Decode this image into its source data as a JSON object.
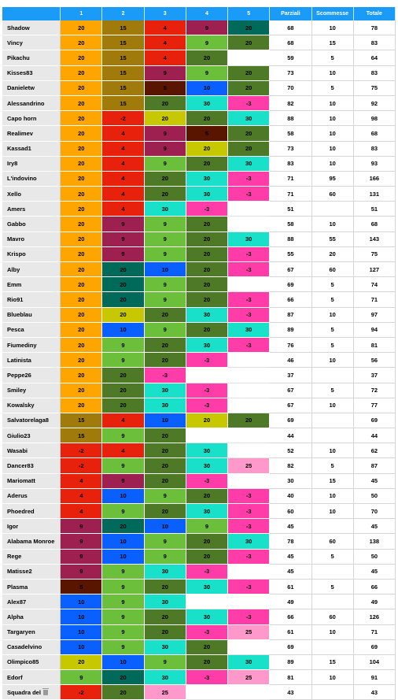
{
  "header": {
    "blank": "",
    "cols": [
      "1",
      "2",
      "3",
      "4",
      "5",
      "Parziali",
      "Scommesse",
      "Totale"
    ]
  },
  "colors": {
    "orange": "#ffa500",
    "olive": "#a07a0a",
    "red": "#e8210c",
    "maroon": "#9e2050",
    "darkteal": "#006a5a",
    "green": "#4e7a28",
    "lightgreen": "#6bbf3b",
    "blue": "#0a60ff",
    "cyan": "#19e0c8",
    "magenta": "#ff3ca8",
    "pink": "#ff99cc",
    "yellow": "#c8c800",
    "brown": "#5a1500",
    "empty": "#ffffff"
  },
  "rows": [
    {
      "name": "Shadow",
      "scores": [
        [
          "20",
          "orange"
        ],
        [
          "15",
          "olive"
        ],
        [
          "4",
          "red"
        ],
        [
          "9",
          "maroon"
        ],
        [
          "20",
          "darkteal"
        ]
      ],
      "parziali": "68",
      "scommesse": "10",
      "totale": "78"
    },
    {
      "name": "Vincy",
      "scores": [
        [
          "20",
          "orange"
        ],
        [
          "15",
          "olive"
        ],
        [
          "4",
          "red"
        ],
        [
          "9",
          "lightgreen"
        ],
        [
          "20",
          "green"
        ]
      ],
      "parziali": "68",
      "scommesse": "15",
      "totale": "83"
    },
    {
      "name": "Pikachu",
      "scores": [
        [
          "20",
          "orange"
        ],
        [
          "15",
          "olive"
        ],
        [
          "4",
          "red"
        ],
        [
          "20",
          "green"
        ],
        [
          "",
          "empty"
        ]
      ],
      "parziali": "59",
      "scommesse": "5",
      "totale": "64"
    },
    {
      "name": "Kisses83",
      "scores": [
        [
          "20",
          "orange"
        ],
        [
          "15",
          "olive"
        ],
        [
          "9",
          "maroon"
        ],
        [
          "9",
          "lightgreen"
        ],
        [
          "20",
          "green"
        ]
      ],
      "parziali": "73",
      "scommesse": "10",
      "totale": "83"
    },
    {
      "name": "Danieletw",
      "scores": [
        [
          "20",
          "orange"
        ],
        [
          "15",
          "olive"
        ],
        [
          "5",
          "brown"
        ],
        [
          "10",
          "blue"
        ],
        [
          "20",
          "green"
        ]
      ],
      "parziali": "70",
      "scommesse": "5",
      "totale": "75"
    },
    {
      "name": "Alessandrino",
      "scores": [
        [
          "20",
          "orange"
        ],
        [
          "15",
          "olive"
        ],
        [
          "20",
          "green"
        ],
        [
          "30",
          "cyan"
        ],
        [
          "-3",
          "magenta"
        ]
      ],
      "parziali": "82",
      "scommesse": "10",
      "totale": "92"
    },
    {
      "name": "Capo horn",
      "scores": [
        [
          "20",
          "orange"
        ],
        [
          "-2",
          "red"
        ],
        [
          "20",
          "yellow"
        ],
        [
          "20",
          "green"
        ],
        [
          "30",
          "cyan"
        ]
      ],
      "parziali": "88",
      "scommesse": "10",
      "totale": "98"
    },
    {
      "name": "Realimev",
      "scores": [
        [
          "20",
          "orange"
        ],
        [
          "4",
          "red"
        ],
        [
          "9",
          "maroon"
        ],
        [
          "5",
          "brown"
        ],
        [
          "20",
          "green"
        ]
      ],
      "parziali": "58",
      "scommesse": "10",
      "totale": "68"
    },
    {
      "name": "Kassad1",
      "scores": [
        [
          "20",
          "orange"
        ],
        [
          "4",
          "red"
        ],
        [
          "9",
          "maroon"
        ],
        [
          "20",
          "yellow"
        ],
        [
          "20",
          "green"
        ]
      ],
      "parziali": "73",
      "scommesse": "10",
      "totale": "83"
    },
    {
      "name": "Iry8",
      "scores": [
        [
          "20",
          "orange"
        ],
        [
          "4",
          "red"
        ],
        [
          "9",
          "lightgreen"
        ],
        [
          "20",
          "green"
        ],
        [
          "30",
          "cyan"
        ]
      ],
      "parziali": "83",
      "scommesse": "10",
      "totale": "93"
    },
    {
      "name": "L'indovino",
      "scores": [
        [
          "20",
          "orange"
        ],
        [
          "4",
          "red"
        ],
        [
          "20",
          "green"
        ],
        [
          "30",
          "cyan"
        ],
        [
          "-3",
          "magenta"
        ]
      ],
      "parziali": "71",
      "scommesse": "95",
      "totale": "166"
    },
    {
      "name": "Xello",
      "scores": [
        [
          "20",
          "orange"
        ],
        [
          "4",
          "red"
        ],
        [
          "20",
          "green"
        ],
        [
          "30",
          "cyan"
        ],
        [
          "-3",
          "magenta"
        ]
      ],
      "parziali": "71",
      "scommesse": "60",
      "totale": "131"
    },
    {
      "name": "Amers",
      "scores": [
        [
          "20",
          "orange"
        ],
        [
          "4",
          "red"
        ],
        [
          "30",
          "cyan"
        ],
        [
          "-3",
          "magenta"
        ],
        [
          "",
          "empty"
        ]
      ],
      "parziali": "51",
      "scommesse": "",
      "totale": "51"
    },
    {
      "name": "Gabbo",
      "scores": [
        [
          "20",
          "orange"
        ],
        [
          "9",
          "maroon"
        ],
        [
          "9",
          "lightgreen"
        ],
        [
          "20",
          "green"
        ],
        [
          "",
          "empty"
        ]
      ],
      "parziali": "58",
      "scommesse": "10",
      "totale": "68"
    },
    {
      "name": "Mavro",
      "scores": [
        [
          "20",
          "orange"
        ],
        [
          "9",
          "maroon"
        ],
        [
          "9",
          "lightgreen"
        ],
        [
          "20",
          "green"
        ],
        [
          "30",
          "cyan"
        ]
      ],
      "parziali": "88",
      "scommesse": "55",
      "totale": "143"
    },
    {
      "name": "Krispo",
      "scores": [
        [
          "20",
          "orange"
        ],
        [
          "9",
          "maroon"
        ],
        [
          "9",
          "lightgreen"
        ],
        [
          "20",
          "green"
        ],
        [
          "-3",
          "magenta"
        ]
      ],
      "parziali": "55",
      "scommesse": "20",
      "totale": "75"
    },
    {
      "name": "Alby",
      "scores": [
        [
          "20",
          "orange"
        ],
        [
          "20",
          "darkteal"
        ],
        [
          "10",
          "blue"
        ],
        [
          "20",
          "green"
        ],
        [
          "-3",
          "magenta"
        ]
      ],
      "parziali": "67",
      "scommesse": "60",
      "totale": "127"
    },
    {
      "name": "Emm",
      "scores": [
        [
          "20",
          "orange"
        ],
        [
          "20",
          "darkteal"
        ],
        [
          "9",
          "lightgreen"
        ],
        [
          "20",
          "green"
        ],
        [
          "",
          "empty"
        ]
      ],
      "parziali": "69",
      "scommesse": "5",
      "totale": "74"
    },
    {
      "name": "Rio91",
      "scores": [
        [
          "20",
          "orange"
        ],
        [
          "20",
          "darkteal"
        ],
        [
          "9",
          "lightgreen"
        ],
        [
          "20",
          "green"
        ],
        [
          "-3",
          "magenta"
        ]
      ],
      "parziali": "66",
      "scommesse": "5",
      "totale": "71"
    },
    {
      "name": "Blueblau",
      "scores": [
        [
          "20",
          "orange"
        ],
        [
          "20",
          "yellow"
        ],
        [
          "20",
          "green"
        ],
        [
          "30",
          "cyan"
        ],
        [
          "-3",
          "magenta"
        ]
      ],
      "parziali": "87",
      "scommesse": "10",
      "totale": "97"
    },
    {
      "name": "Pesca",
      "scores": [
        [
          "20",
          "orange"
        ],
        [
          "10",
          "blue"
        ],
        [
          "9",
          "lightgreen"
        ],
        [
          "20",
          "green"
        ],
        [
          "30",
          "cyan"
        ]
      ],
      "parziali": "89",
      "scommesse": "5",
      "totale": "94"
    },
    {
      "name": "Fiumediny",
      "scores": [
        [
          "20",
          "orange"
        ],
        [
          "9",
          "lightgreen"
        ],
        [
          "20",
          "green"
        ],
        [
          "30",
          "cyan"
        ],
        [
          "-3",
          "magenta"
        ]
      ],
      "parziali": "76",
      "scommesse": "5",
      "totale": "81"
    },
    {
      "name": "Latinista",
      "scores": [
        [
          "20",
          "orange"
        ],
        [
          "9",
          "lightgreen"
        ],
        [
          "20",
          "green"
        ],
        [
          "-3",
          "magenta"
        ],
        [
          "",
          "empty"
        ]
      ],
      "parziali": "46",
      "scommesse": "10",
      "totale": "56"
    },
    {
      "name": "Peppe26",
      "scores": [
        [
          "20",
          "orange"
        ],
        [
          "20",
          "green"
        ],
        [
          "-3",
          "magenta"
        ],
        [
          "",
          "empty"
        ],
        [
          "",
          "empty"
        ]
      ],
      "parziali": "37",
      "scommesse": "",
      "totale": "37"
    },
    {
      "name": "Smiley",
      "scores": [
        [
          "20",
          "orange"
        ],
        [
          "20",
          "green"
        ],
        [
          "30",
          "cyan"
        ],
        [
          "-3",
          "magenta"
        ],
        [
          "",
          "empty"
        ]
      ],
      "parziali": "67",
      "scommesse": "5",
      "totale": "72"
    },
    {
      "name": "Kowalsky",
      "scores": [
        [
          "20",
          "orange"
        ],
        [
          "20",
          "green"
        ],
        [
          "30",
          "cyan"
        ],
        [
          "-3",
          "magenta"
        ],
        [
          "",
          "empty"
        ]
      ],
      "parziali": "67",
      "scommesse": "10",
      "totale": "77"
    },
    {
      "name": "Salvatorelaga8",
      "scores": [
        [
          "15",
          "olive"
        ],
        [
          "4",
          "red"
        ],
        [
          "10",
          "blue"
        ],
        [
          "20",
          "yellow"
        ],
        [
          "20",
          "green"
        ]
      ],
      "parziali": "69",
      "scommesse": "",
      "totale": "69"
    },
    {
      "name": "Giulio23",
      "scores": [
        [
          "15",
          "olive"
        ],
        [
          "9",
          "lightgreen"
        ],
        [
          "20",
          "green"
        ],
        [
          "",
          "empty"
        ],
        [
          "",
          "empty"
        ]
      ],
      "parziali": "44",
      "scommesse": "",
      "totale": "44"
    },
    {
      "name": "Wasabi",
      "scores": [
        [
          "-2",
          "red"
        ],
        [
          "4",
          "red"
        ],
        [
          "20",
          "green"
        ],
        [
          "30",
          "cyan"
        ],
        [
          "",
          "empty"
        ]
      ],
      "parziali": "52",
      "scommesse": "10",
      "totale": "62"
    },
    {
      "name": "Dancer83",
      "scores": [
        [
          "-2",
          "red"
        ],
        [
          "9",
          "lightgreen"
        ],
        [
          "20",
          "green"
        ],
        [
          "30",
          "cyan"
        ],
        [
          "25",
          "pink"
        ]
      ],
      "parziali": "82",
      "scommesse": "5",
      "totale": "87"
    },
    {
      "name": "Mariomatt",
      "scores": [
        [
          "4",
          "red"
        ],
        [
          "9",
          "maroon"
        ],
        [
          "20",
          "green"
        ],
        [
          "-3",
          "magenta"
        ],
        [
          "",
          "empty"
        ]
      ],
      "parziali": "30",
      "scommesse": "15",
      "totale": "45"
    },
    {
      "name": "Aderus",
      "scores": [
        [
          "4",
          "red"
        ],
        [
          "10",
          "blue"
        ],
        [
          "9",
          "lightgreen"
        ],
        [
          "20",
          "green"
        ],
        [
          "-3",
          "magenta"
        ]
      ],
      "parziali": "40",
      "scommesse": "10",
      "totale": "50"
    },
    {
      "name": "Phoedred",
      "scores": [
        [
          "4",
          "red"
        ],
        [
          "9",
          "lightgreen"
        ],
        [
          "20",
          "green"
        ],
        [
          "30",
          "cyan"
        ],
        [
          "-3",
          "magenta"
        ]
      ],
      "parziali": "60",
      "scommesse": "10",
      "totale": "70"
    },
    {
      "name": "Igor",
      "scores": [
        [
          "9",
          "maroon"
        ],
        [
          "20",
          "darkteal"
        ],
        [
          "10",
          "blue"
        ],
        [
          "9",
          "lightgreen"
        ],
        [
          "-3",
          "magenta"
        ]
      ],
      "parziali": "45",
      "scommesse": "",
      "totale": "45"
    },
    {
      "name": "Alabama Monroe",
      "scores": [
        [
          "9",
          "maroon"
        ],
        [
          "10",
          "blue"
        ],
        [
          "9",
          "lightgreen"
        ],
        [
          "20",
          "green"
        ],
        [
          "30",
          "cyan"
        ]
      ],
      "parziali": "78",
      "scommesse": "60",
      "totale": "138"
    },
    {
      "name": "Rege",
      "scores": [
        [
          "9",
          "maroon"
        ],
        [
          "10",
          "blue"
        ],
        [
          "9",
          "lightgreen"
        ],
        [
          "20",
          "green"
        ],
        [
          "-3",
          "magenta"
        ]
      ],
      "parziali": "45",
      "scommesse": "5",
      "totale": "50"
    },
    {
      "name": "Matisse2",
      "scores": [
        [
          "9",
          "maroon"
        ],
        [
          "9",
          "lightgreen"
        ],
        [
          "30",
          "cyan"
        ],
        [
          "-3",
          "magenta"
        ],
        [
          "",
          "empty"
        ]
      ],
      "parziali": "45",
      "scommesse": "",
      "totale": "45"
    },
    {
      "name": "Plasma",
      "scores": [
        [
          "5",
          "brown"
        ],
        [
          "9",
          "lightgreen"
        ],
        [
          "20",
          "green"
        ],
        [
          "30",
          "cyan"
        ],
        [
          "-3",
          "magenta"
        ]
      ],
      "parziali": "61",
      "scommesse": "5",
      "totale": "66"
    },
    {
      "name": "Alex87",
      "scores": [
        [
          "10",
          "blue"
        ],
        [
          "9",
          "lightgreen"
        ],
        [
          "30",
          "cyan"
        ],
        [
          "",
          "empty"
        ],
        [
          "",
          "empty"
        ]
      ],
      "parziali": "49",
      "scommesse": "",
      "totale": "49"
    },
    {
      "name": "Alpha",
      "scores": [
        [
          "10",
          "blue"
        ],
        [
          "9",
          "lightgreen"
        ],
        [
          "20",
          "green"
        ],
        [
          "30",
          "cyan"
        ],
        [
          "-3",
          "magenta"
        ]
      ],
      "parziali": "66",
      "scommesse": "60",
      "totale": "126"
    },
    {
      "name": "Targaryen",
      "scores": [
        [
          "10",
          "blue"
        ],
        [
          "9",
          "lightgreen"
        ],
        [
          "20",
          "green"
        ],
        [
          "-3",
          "magenta"
        ],
        [
          "25",
          "pink"
        ]
      ],
      "parziali": "61",
      "scommesse": "10",
      "totale": "71"
    },
    {
      "name": "Casadelvino",
      "scores": [
        [
          "10",
          "blue"
        ],
        [
          "9",
          "lightgreen"
        ],
        [
          "30",
          "cyan"
        ],
        [
          "20",
          "green"
        ],
        [
          "",
          "empty"
        ]
      ],
      "parziali": "69",
      "scommesse": "",
      "totale": "69"
    },
    {
      "name": "Olimpico85",
      "scores": [
        [
          "20",
          "yellow"
        ],
        [
          "10",
          "blue"
        ],
        [
          "9",
          "lightgreen"
        ],
        [
          "20",
          "green"
        ],
        [
          "30",
          "cyan"
        ]
      ],
      "parziali": "89",
      "scommesse": "15",
      "totale": "104"
    },
    {
      "name": "Edorf",
      "scores": [
        [
          "9",
          "lightgreen"
        ],
        [
          "20",
          "darkteal"
        ],
        [
          "30",
          "cyan"
        ],
        [
          "-3",
          "magenta"
        ],
        [
          "25",
          "pink"
        ]
      ],
      "parziali": "81",
      "scommesse": "10",
      "totale": "91"
    },
    {
      "name": "Squadra del",
      "icon": "trash-icon",
      "scores": [
        [
          "-2",
          "red"
        ],
        [
          "20",
          "green"
        ],
        [
          "25",
          "pink"
        ],
        [
          "",
          "empty"
        ],
        [
          "",
          "empty"
        ]
      ],
      "parziali": "43",
      "scommesse": "",
      "totale": "43"
    }
  ]
}
